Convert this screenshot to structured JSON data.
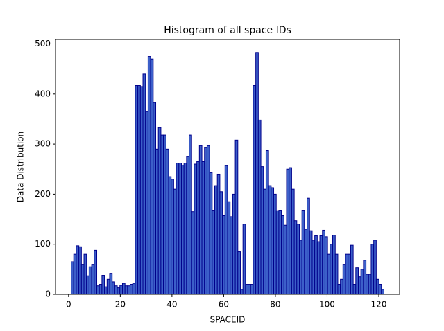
{
  "chart_data": {
    "type": "histogram",
    "title": "Histogram of all space IDs",
    "x_label": "SPACEID",
    "y_label": "Data Distribution",
    "bins": [
      1.0,
      1.99,
      2.98,
      3.98,
      4.97,
      5.96,
      6.95,
      7.94,
      8.93,
      9.93,
      10.92,
      11.91,
      12.9,
      13.89,
      14.89,
      15.88,
      16.87,
      17.86,
      18.85,
      19.84,
      20.84,
      21.83,
      22.82,
      23.81,
      24.8,
      25.8,
      26.79,
      27.78,
      28.77,
      29.76,
      30.75,
      31.75,
      32.74,
      33.73,
      34.72,
      35.71,
      36.7,
      37.7,
      38.69,
      39.68,
      40.67,
      41.66,
      42.66,
      43.65,
      44.64,
      45.63,
      46.62,
      47.61,
      48.61,
      49.6,
      50.59,
      51.58,
      52.57,
      53.57,
      54.56,
      55.55,
      56.54,
      57.53,
      58.52,
      59.52,
      60.51,
      61.5,
      62.49,
      63.48,
      64.48,
      65.47,
      66.46,
      67.45,
      68.44,
      69.43,
      70.43,
      71.42,
      72.41,
      73.4,
      74.39,
      75.39,
      76.38,
      77.37,
      78.36,
      79.35,
      80.34,
      81.34,
      82.33,
      83.32,
      84.31,
      85.3,
      86.3,
      87.29,
      88.28,
      89.27,
      90.26,
      91.25,
      92.25,
      93.24,
      94.23,
      95.22,
      96.21,
      97.2,
      98.2,
      99.19,
      100.18,
      101.17,
      102.16,
      103.16,
      104.15,
      105.14,
      106.13,
      107.12,
      108.11,
      109.11,
      110.1,
      111.09,
      112.08,
      113.07,
      114.07,
      115.06,
      116.05,
      117.04,
      118.03,
      119.02,
      120.02,
      121.01,
      122.0
    ],
    "values": [
      65,
      80,
      97,
      95,
      60,
      80,
      37,
      55,
      60,
      88,
      17,
      20,
      38,
      15,
      30,
      42,
      25,
      17,
      13,
      18,
      22,
      17,
      17,
      20,
      22,
      417,
      417,
      415,
      440,
      365,
      475,
      470,
      383,
      290,
      333,
      318,
      318,
      290,
      235,
      230,
      210,
      262,
      262,
      258,
      262,
      275,
      318,
      165,
      260,
      265,
      297,
      265,
      293,
      297,
      243,
      168,
      217,
      240,
      205,
      157,
      257,
      185,
      155,
      200,
      308,
      85,
      10,
      140,
      20,
      20,
      20,
      417,
      483,
      348,
      255,
      210,
      287,
      217,
      213,
      200,
      167,
      168,
      157,
      138,
      250,
      253,
      210,
      147,
      140,
      108,
      168,
      130,
      192,
      127,
      108,
      117,
      105,
      117,
      128,
      115,
      80,
      100,
      118,
      80,
      20,
      30,
      60,
      80,
      80,
      98,
      20,
      53,
      35,
      50,
      68,
      40,
      40,
      100,
      108,
      30,
      20,
      10
    ],
    "color": "#3c5fc9",
    "edgecolor": "#00008b",
    "xlim": [
      -5.05,
      128.05
    ],
    "xticks": [
      0,
      20,
      40,
      60,
      80,
      100,
      120
    ],
    "ylim": [
      0,
      509
    ],
    "yticks": [
      0,
      100,
      200,
      300,
      400,
      500
    ]
  }
}
